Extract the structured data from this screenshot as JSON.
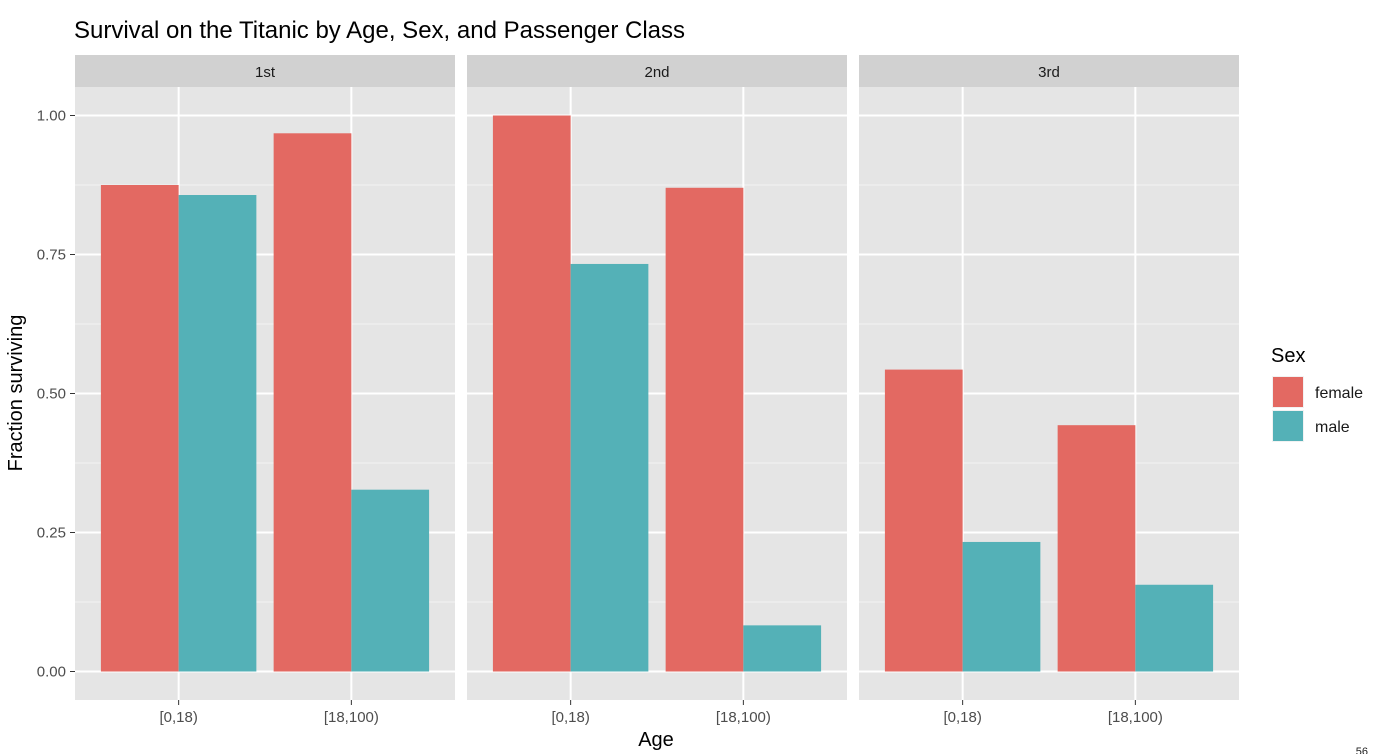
{
  "page_number": "56",
  "chart_data": {
    "type": "bar",
    "title": "Survival on the Titanic by Age, Sex, and Passenger Class",
    "xlabel": "Age",
    "ylabel": "Fraction surviving",
    "ylim": [
      0,
      1.05
    ],
    "yticks": [
      "0.00",
      "0.25",
      "0.50",
      "0.75",
      "1.00"
    ],
    "grid": true,
    "legend": {
      "title": "Sex",
      "position": "right",
      "entries": [
        "female",
        "male"
      ]
    },
    "colors": {
      "female": "#E36962",
      "male": "#54B1B7",
      "panel_bg": "#E5E5E5",
      "strip_bg": "#D1D1D1",
      "grid": "#FFFFFF"
    },
    "categories": [
      "[0,18)",
      "[18,100)"
    ],
    "facets": [
      {
        "label": "1st",
        "series": [
          {
            "name": "female",
            "values": [
              0.875,
              0.968
            ]
          },
          {
            "name": "male",
            "values": [
              0.857,
              0.327
            ]
          }
        ]
      },
      {
        "label": "2nd",
        "series": [
          {
            "name": "female",
            "values": [
              1.0,
              0.87
            ]
          },
          {
            "name": "male",
            "values": [
              0.733,
              0.083
            ]
          }
        ]
      },
      {
        "label": "3rd",
        "series": [
          {
            "name": "female",
            "values": [
              0.543,
              0.443
            ]
          },
          {
            "name": "male",
            "values": [
              0.233,
              0.156
            ]
          }
        ]
      }
    ]
  }
}
